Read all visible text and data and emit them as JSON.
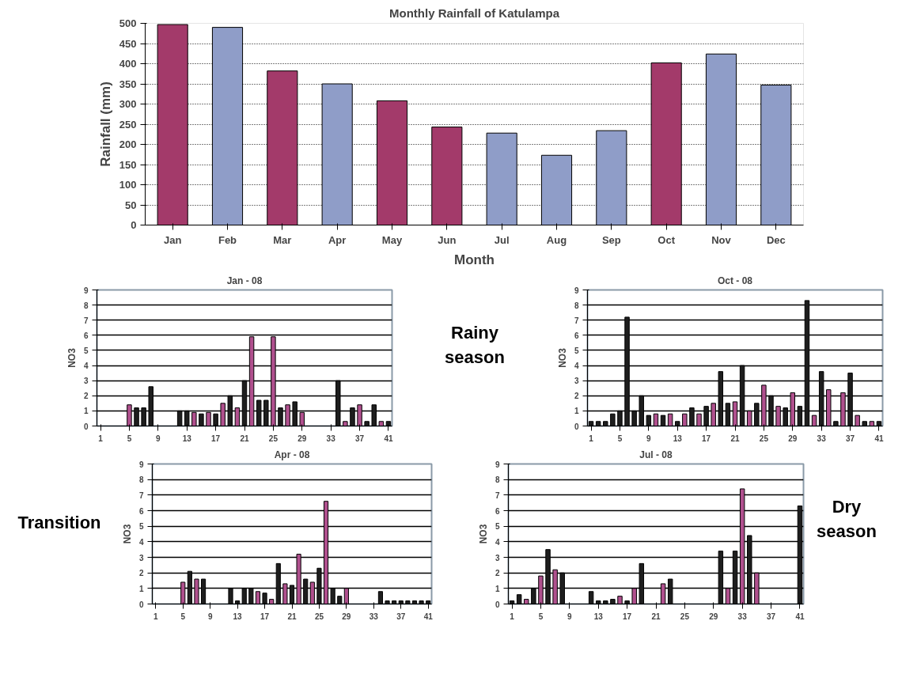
{
  "chart_data": [
    {
      "type": "bar",
      "title": "Monthly Rainfall of Katulampa",
      "xlabel": "Month",
      "ylabel": "Rainfall (mm)",
      "categories": [
        "Jan",
        "Feb",
        "Mar",
        "Apr",
        "May",
        "Jun",
        "Jul",
        "Aug",
        "Sep",
        "Oct",
        "Nov",
        "Dec"
      ],
      "values": [
        497,
        490,
        382,
        350,
        308,
        243,
        228,
        173,
        234,
        402,
        424,
        347
      ],
      "colors": [
        "#a33a6a",
        "#8f9dc8",
        "#a33a6a",
        "#8f9dc8",
        "#a33a6a",
        "#a33a6a",
        "#8f9dc8",
        "#8f9dc8",
        "#8f9dc8",
        "#a33a6a",
        "#8f9dc8",
        "#8f9dc8"
      ],
      "ylim": [
        0,
        500
      ],
      "yticks": [
        0,
        50,
        100,
        150,
        200,
        250,
        300,
        350,
        400,
        450,
        500
      ],
      "grid": "y"
    },
    {
      "type": "bar",
      "title": "Jan - 08",
      "ylabel": "NO3",
      "categories": [
        "1",
        null,
        null,
        null,
        "5",
        null,
        null,
        null,
        "9",
        null,
        null,
        null,
        "13",
        null,
        null,
        null,
        "17",
        null,
        null,
        null,
        "21",
        null,
        null,
        null,
        "25",
        null,
        null,
        null,
        "29",
        null,
        null,
        null,
        "33",
        null,
        null,
        null,
        "37",
        null,
        null,
        null,
        "41"
      ],
      "values": [
        null,
        null,
        null,
        null,
        1.4,
        1.2,
        1.2,
        2.6,
        null,
        null,
        null,
        1.0,
        1.0,
        0.9,
        0.8,
        0.9,
        0.8,
        1.5,
        2.0,
        1.2,
        3.0,
        5.9,
        1.7,
        1.7,
        5.9,
        1.2,
        1.4,
        1.6,
        0.9,
        null,
        null,
        null,
        null,
        3.0,
        0.3,
        1.2,
        1.4,
        0.3,
        1.4,
        0.3,
        0.3
      ],
      "colors": [
        "#1e1e1e",
        "#1e1e1e",
        "#1e1e1e",
        "#1e1e1e",
        "#b0508e",
        "#1e1e1e",
        "#1e1e1e",
        "#1e1e1e",
        "#1e1e1e",
        "#1e1e1e",
        "#1e1e1e",
        "#1e1e1e",
        "#1e1e1e",
        "#b0508e",
        "#1e1e1e",
        "#b0508e",
        "#1e1e1e",
        "#b0508e",
        "#1e1e1e",
        "#b0508e",
        "#1e1e1e",
        "#b0508e",
        "#1e1e1e",
        "#1e1e1e",
        "#b0508e",
        "#1e1e1e",
        "#b0508e",
        "#1e1e1e",
        "#b0508e",
        "#1e1e1e",
        "#1e1e1e",
        "#1e1e1e",
        "#1e1e1e",
        "#1e1e1e",
        "#b0508e",
        "#1e1e1e",
        "#b0508e",
        "#1e1e1e",
        "#1e1e1e",
        "#b0508e",
        "#1e1e1e"
      ],
      "ylim": [
        0,
        9
      ],
      "yticks": [
        0,
        1,
        2,
        3,
        4,
        5,
        6,
        7,
        8,
        9
      ],
      "grid": "y"
    },
    {
      "type": "bar",
      "title": "Oct - 08",
      "ylabel": "NO3",
      "categories": [
        "1",
        null,
        null,
        null,
        "5",
        null,
        null,
        null,
        "9",
        null,
        null,
        null,
        "13",
        null,
        null,
        null,
        "17",
        null,
        null,
        null,
        "21",
        null,
        null,
        null,
        "25",
        null,
        null,
        null,
        "29",
        null,
        null,
        null,
        "33",
        null,
        null,
        null,
        "37",
        null,
        null,
        null,
        "41"
      ],
      "values": [
        0.3,
        0.3,
        0.3,
        0.8,
        1.0,
        7.2,
        1.0,
        2.0,
        0.7,
        0.8,
        0.7,
        0.8,
        0.3,
        0.8,
        1.2,
        0.8,
        1.3,
        1.5,
        3.6,
        1.5,
        1.6,
        4.0,
        1.0,
        1.5,
        2.7,
        2.0,
        1.3,
        1.2,
        2.2,
        1.3,
        8.3,
        0.7,
        3.6,
        2.4,
        0.3,
        2.2,
        3.5,
        0.7,
        0.3,
        0.3,
        0.3
      ],
      "colors": [
        "#1e1e1e",
        "#1e1e1e",
        "#1e1e1e",
        "#1e1e1e",
        "#1e1e1e",
        "#1e1e1e",
        "#1e1e1e",
        "#1e1e1e",
        "#1e1e1e",
        "#b0508e",
        "#1e1e1e",
        "#b0508e",
        "#1e1e1e",
        "#b0508e",
        "#1e1e1e",
        "#b0508e",
        "#1e1e1e",
        "#b0508e",
        "#1e1e1e",
        "#1e1e1e",
        "#b0508e",
        "#1e1e1e",
        "#b0508e",
        "#1e1e1e",
        "#b0508e",
        "#1e1e1e",
        "#b0508e",
        "#1e1e1e",
        "#b0508e",
        "#1e1e1e",
        "#1e1e1e",
        "#b0508e",
        "#1e1e1e",
        "#b0508e",
        "#1e1e1e",
        "#b0508e",
        "#1e1e1e",
        "#b0508e",
        "#1e1e1e",
        "#b0508e",
        "#1e1e1e"
      ],
      "ylim": [
        0,
        9
      ],
      "yticks": [
        0,
        1,
        2,
        3,
        4,
        5,
        6,
        7,
        8,
        9
      ],
      "grid": "y"
    },
    {
      "type": "bar",
      "title": "Apr - 08",
      "ylabel": "NO3",
      "categories": [
        "1",
        null,
        null,
        null,
        "5",
        null,
        null,
        null,
        "9",
        null,
        null,
        null,
        "13",
        null,
        null,
        null,
        "17",
        null,
        null,
        null,
        "21",
        null,
        null,
        null,
        "25",
        null,
        null,
        null,
        "29",
        null,
        null,
        null,
        "33",
        null,
        null,
        null,
        "37",
        null,
        null,
        null,
        "41"
      ],
      "values": [
        null,
        null,
        null,
        null,
        1.4,
        2.1,
        1.6,
        1.6,
        null,
        null,
        null,
        1.0,
        0.2,
        1.0,
        1.0,
        0.8,
        0.7,
        0.3,
        2.6,
        1.3,
        1.2,
        3.2,
        1.6,
        1.4,
        2.3,
        6.6,
        1.0,
        0.5,
        1.0,
        null,
        null,
        null,
        null,
        0.8,
        0.2,
        0.2,
        0.2,
        0.2,
        0.2,
        0.2,
        0.2
      ],
      "colors": [
        "#1e1e1e",
        "#1e1e1e",
        "#1e1e1e",
        "#1e1e1e",
        "#b0508e",
        "#1e1e1e",
        "#b0508e",
        "#1e1e1e",
        "#1e1e1e",
        "#1e1e1e",
        "#1e1e1e",
        "#1e1e1e",
        "#1e1e1e",
        "#1e1e1e",
        "#1e1e1e",
        "#b0508e",
        "#1e1e1e",
        "#b0508e",
        "#1e1e1e",
        "#b0508e",
        "#1e1e1e",
        "#b0508e",
        "#1e1e1e",
        "#b0508e",
        "#1e1e1e",
        "#b0508e",
        "#1e1e1e",
        "#1e1e1e",
        "#b0508e",
        "#1e1e1e",
        "#1e1e1e",
        "#1e1e1e",
        "#1e1e1e",
        "#1e1e1e",
        "#1e1e1e",
        "#1e1e1e",
        "#1e1e1e",
        "#1e1e1e",
        "#1e1e1e",
        "#1e1e1e",
        "#1e1e1e"
      ],
      "ylim": [
        0,
        9
      ],
      "yticks": [
        0,
        1,
        2,
        3,
        4,
        5,
        6,
        7,
        8,
        9
      ],
      "grid": "y"
    },
    {
      "type": "bar",
      "title": "Jul - 08",
      "ylabel": "NO3",
      "categories": [
        "1",
        null,
        null,
        null,
        "5",
        null,
        null,
        null,
        "9",
        null,
        null,
        null,
        "13",
        null,
        null,
        null,
        "17",
        null,
        null,
        null,
        "21",
        null,
        null,
        null,
        "25",
        null,
        null,
        null,
        "29",
        null,
        null,
        null,
        "33",
        null,
        null,
        null,
        "37",
        null,
        null,
        null,
        "41"
      ],
      "values": [
        0.2,
        0.6,
        0.3,
        1.0,
        1.8,
        3.5,
        2.2,
        2.0,
        null,
        null,
        null,
        0.8,
        0.2,
        0.2,
        0.3,
        0.5,
        0.2,
        1.0,
        2.6,
        null,
        null,
        1.3,
        1.6,
        null,
        null,
        null,
        null,
        null,
        null,
        3.4,
        1.0,
        3.4,
        7.4,
        4.4,
        2.0,
        null,
        null,
        null,
        null,
        null,
        6.3
      ],
      "colors": [
        "#1e1e1e",
        "#1e1e1e",
        "#b0508e",
        "#1e1e1e",
        "#b0508e",
        "#1e1e1e",
        "#b0508e",
        "#1e1e1e",
        "#1e1e1e",
        "#1e1e1e",
        "#1e1e1e",
        "#1e1e1e",
        "#1e1e1e",
        "#1e1e1e",
        "#1e1e1e",
        "#b0508e",
        "#1e1e1e",
        "#b0508e",
        "#1e1e1e",
        "#1e1e1e",
        "#1e1e1e",
        "#b0508e",
        "#1e1e1e",
        "#1e1e1e",
        "#1e1e1e",
        "#1e1e1e",
        "#1e1e1e",
        "#1e1e1e",
        "#1e1e1e",
        "#1e1e1e",
        "#b0508e",
        "#1e1e1e",
        "#b0508e",
        "#1e1e1e",
        "#b0508e",
        "#1e1e1e",
        "#1e1e1e",
        "#1e1e1e",
        "#1e1e1e",
        "#1e1e1e",
        "#1e1e1e"
      ],
      "ylim": [
        0,
        9
      ],
      "yticks": [
        0,
        1,
        2,
        3,
        4,
        5,
        6,
        7,
        8,
        9
      ],
      "grid": "y"
    },
    {
      "type": "other",
      "annotations": [
        "Rainy season",
        "Transition",
        "Dry season"
      ]
    }
  ]
}
